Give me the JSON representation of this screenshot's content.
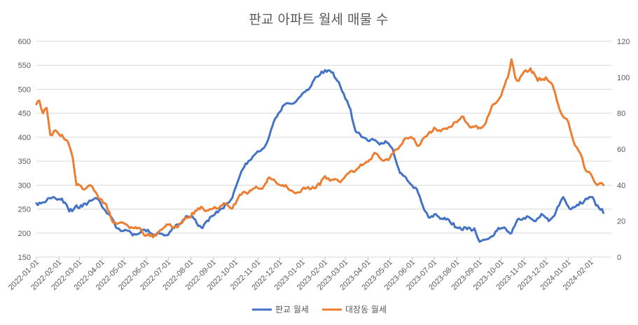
{
  "chart_data": {
    "type": "line",
    "title": "판교 아파트 월세 매물 수",
    "xlabel": "",
    "ylabel": "",
    "y2label": "",
    "grid": true,
    "legend_position": "bottom",
    "x": [
      "2022-01-01",
      "2022-02-01",
      "2022-03-01",
      "2022-04-01",
      "2022-05-01",
      "2022-06-01",
      "2022-07-01",
      "2022-08-01",
      "2022-09-01",
      "2022-10-01",
      "2022-11-01",
      "2022-12-01",
      "2023-01-01",
      "2023-02-01",
      "2023-03-01",
      "2023-04-01",
      "2023-05-01",
      "2023-06-01",
      "2023-07-01",
      "2023-08-01",
      "2023-09-01",
      "2023-10-01",
      "2023-11-01",
      "2023-12-01",
      "2024-01-01",
      "2024-02-01"
    ],
    "ylim": [
      150,
      600
    ],
    "yticks": [
      150,
      200,
      250,
      300,
      350,
      400,
      450,
      500,
      550,
      600
    ],
    "y2lim": [
      0,
      120
    ],
    "y2ticks": [
      0,
      20,
      40,
      60,
      80,
      100,
      120
    ],
    "series": [
      {
        "name": "판교 월세",
        "axis": "left",
        "color": "#4472C4",
        "points": [
          [
            "2022-01-01",
            262
          ],
          [
            "2022-01-15",
            268
          ],
          [
            "2022-01-25",
            275
          ],
          [
            "2022-02-05",
            272
          ],
          [
            "2022-02-15",
            245
          ],
          [
            "2022-02-25",
            258
          ],
          [
            "2022-03-05",
            255
          ],
          [
            "2022-03-15",
            268
          ],
          [
            "2022-03-25",
            272
          ],
          [
            "2022-04-01",
            255
          ],
          [
            "2022-04-10",
            240
          ],
          [
            "2022-04-20",
            212
          ],
          [
            "2022-05-01",
            205
          ],
          [
            "2022-05-15",
            198
          ],
          [
            "2022-05-25",
            205
          ],
          [
            "2022-06-05",
            202
          ],
          [
            "2022-06-15",
            198
          ],
          [
            "2022-06-25",
            195
          ],
          [
            "2022-07-05",
            205
          ],
          [
            "2022-07-15",
            218
          ],
          [
            "2022-07-25",
            235
          ],
          [
            "2022-08-05",
            230
          ],
          [
            "2022-08-15",
            212
          ],
          [
            "2022-08-25",
            225
          ],
          [
            "2022-09-05",
            245
          ],
          [
            "2022-09-15",
            252
          ],
          [
            "2022-09-25",
            270
          ],
          [
            "2022-10-05",
            310
          ],
          [
            "2022-10-15",
            345
          ],
          [
            "2022-10-25",
            360
          ],
          [
            "2022-11-05",
            372
          ],
          [
            "2022-11-15",
            395
          ],
          [
            "2022-11-25",
            440
          ],
          [
            "2022-12-05",
            465
          ],
          [
            "2022-12-15",
            470
          ],
          [
            "2022-12-25",
            478
          ],
          [
            "2023-01-05",
            495
          ],
          [
            "2023-01-15",
            515
          ],
          [
            "2023-01-25",
            530
          ],
          [
            "2023-02-01",
            540
          ],
          [
            "2023-02-10",
            535
          ],
          [
            "2023-02-20",
            515
          ],
          [
            "2023-03-01",
            480
          ],
          [
            "2023-03-08",
            458
          ],
          [
            "2023-03-15",
            412
          ],
          [
            "2023-03-25",
            400
          ],
          [
            "2023-04-05",
            395
          ],
          [
            "2023-04-15",
            388
          ],
          [
            "2023-04-25",
            392
          ],
          [
            "2023-05-05",
            375
          ],
          [
            "2023-05-15",
            325
          ],
          [
            "2023-05-25",
            310
          ],
          [
            "2023-06-05",
            295
          ],
          [
            "2023-06-15",
            258
          ],
          [
            "2023-06-25",
            232
          ],
          [
            "2023-07-05",
            236
          ],
          [
            "2023-07-15",
            232
          ],
          [
            "2023-07-25",
            218
          ],
          [
            "2023-08-05",
            212
          ],
          [
            "2023-08-15",
            208
          ],
          [
            "2023-08-25",
            210
          ],
          [
            "2023-09-01",
            182
          ],
          [
            "2023-09-15",
            190
          ],
          [
            "2023-09-25",
            205
          ],
          [
            "2023-10-05",
            212
          ],
          [
            "2023-10-15",
            200
          ],
          [
            "2023-10-25",
            230
          ],
          [
            "2023-11-05",
            235
          ],
          [
            "2023-11-15",
            225
          ],
          [
            "2023-11-25",
            240
          ],
          [
            "2023-12-05",
            225
          ],
          [
            "2023-12-15",
            245
          ],
          [
            "2023-12-25",
            275
          ],
          [
            "2024-01-05",
            250
          ],
          [
            "2024-01-15",
            258
          ],
          [
            "2024-01-25",
            272
          ],
          [
            "2024-02-01",
            275
          ],
          [
            "2024-02-10",
            258
          ],
          [
            "2024-02-18",
            242
          ]
        ]
      },
      {
        "name": "대장동 월세",
        "axis": "right",
        "color": "#ED7D31",
        "points": [
          [
            "2022-01-01",
            85
          ],
          [
            "2022-01-05",
            87
          ],
          [
            "2022-01-10",
            80
          ],
          [
            "2022-01-15",
            83
          ],
          [
            "2022-01-20",
            68
          ],
          [
            "2022-01-25",
            70
          ],
          [
            "2022-02-05",
            68
          ],
          [
            "2022-02-15",
            62
          ],
          [
            "2022-02-20",
            55
          ],
          [
            "2022-02-25",
            40
          ],
          [
            "2022-03-05",
            38
          ],
          [
            "2022-03-15",
            40
          ],
          [
            "2022-03-25",
            35
          ],
          [
            "2022-04-05",
            30
          ],
          [
            "2022-04-15",
            20
          ],
          [
            "2022-04-25",
            19
          ],
          [
            "2022-05-05",
            18
          ],
          [
            "2022-05-15",
            16
          ],
          [
            "2022-05-25",
            15
          ],
          [
            "2022-06-01",
            12
          ],
          [
            "2022-06-10",
            11
          ],
          [
            "2022-06-20",
            15
          ],
          [
            "2022-07-01",
            18
          ],
          [
            "2022-07-10",
            17
          ],
          [
            "2022-07-20",
            19
          ],
          [
            "2022-07-25",
            22
          ],
          [
            "2022-08-05",
            24
          ],
          [
            "2022-08-15",
            28
          ],
          [
            "2022-08-25",
            26
          ],
          [
            "2022-09-05",
            27
          ],
          [
            "2022-09-15",
            30
          ],
          [
            "2022-09-25",
            27
          ],
          [
            "2022-10-05",
            33
          ],
          [
            "2022-10-15",
            36
          ],
          [
            "2022-10-25",
            38
          ],
          [
            "2022-11-05",
            38
          ],
          [
            "2022-11-15",
            44
          ],
          [
            "2022-11-25",
            42
          ],
          [
            "2022-12-05",
            40
          ],
          [
            "2022-12-15",
            37
          ],
          [
            "2022-12-25",
            36
          ],
          [
            "2023-01-05",
            38
          ],
          [
            "2023-01-15",
            39
          ],
          [
            "2023-01-25",
            40
          ],
          [
            "2023-02-01",
            45
          ],
          [
            "2023-02-10",
            43
          ],
          [
            "2023-02-20",
            42
          ],
          [
            "2023-03-01",
            45
          ],
          [
            "2023-03-10",
            48
          ],
          [
            "2023-03-20",
            50
          ],
          [
            "2023-04-01",
            53
          ],
          [
            "2023-04-10",
            58
          ],
          [
            "2023-04-20",
            54
          ],
          [
            "2023-05-01",
            55
          ],
          [
            "2023-05-10",
            60
          ],
          [
            "2023-05-20",
            65
          ],
          [
            "2023-06-01",
            66
          ],
          [
            "2023-06-10",
            62
          ],
          [
            "2023-06-20",
            67
          ],
          [
            "2023-07-01",
            72
          ],
          [
            "2023-07-10",
            70
          ],
          [
            "2023-07-20",
            72
          ],
          [
            "2023-08-01",
            75
          ],
          [
            "2023-08-10",
            78
          ],
          [
            "2023-08-20",
            72
          ],
          [
            "2023-09-01",
            72
          ],
          [
            "2023-09-10",
            75
          ],
          [
            "2023-09-20",
            85
          ],
          [
            "2023-10-01",
            90
          ],
          [
            "2023-10-10",
            100
          ],
          [
            "2023-10-15",
            110
          ],
          [
            "2023-10-20",
            100
          ],
          [
            "2023-10-25",
            98
          ],
          [
            "2023-11-01",
            103
          ],
          [
            "2023-11-10",
            105
          ],
          [
            "2023-11-20",
            98
          ],
          [
            "2023-12-01",
            100
          ],
          [
            "2023-12-10",
            96
          ],
          [
            "2023-12-20",
            82
          ],
          [
            "2023-12-25",
            78
          ],
          [
            "2024-01-01",
            75
          ],
          [
            "2024-01-10",
            62
          ],
          [
            "2024-01-20",
            55
          ],
          [
            "2024-01-25",
            48
          ],
          [
            "2024-02-01",
            46
          ],
          [
            "2024-02-10",
            40
          ],
          [
            "2024-02-18",
            40
          ]
        ]
      }
    ]
  }
}
